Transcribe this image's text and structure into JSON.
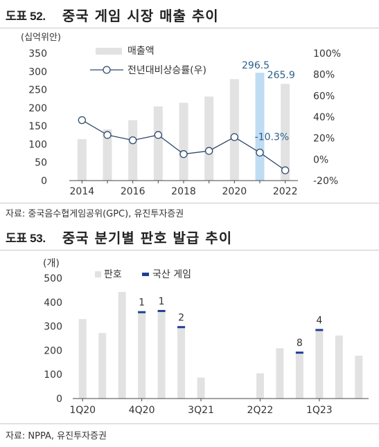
{
  "fig52": {
    "number": "도표 52.",
    "title": "중국 게임 시장 매출 추이",
    "source": "자료: 중국음수협게임공위(GPC), 유진투자증권"
  },
  "fig53": {
    "number": "도표 53.",
    "title": "중국 분기별 판호 발급 추이",
    "source": "자료: NPPA, 유진투자증권"
  },
  "chart_data": [
    {
      "type": "bar",
      "unit_label": "(십억위안)",
      "x": [
        2014,
        2015,
        2016,
        2017,
        2018,
        2019,
        2020,
        2021,
        2022
      ],
      "x_tick_labels": [
        "2014",
        "2016",
        "2018",
        "2020",
        "2022"
      ],
      "ylim": [
        0,
        350
      ],
      "y_ticks": [
        0,
        50,
        100,
        150,
        200,
        250,
        300,
        350
      ],
      "y2lim": [
        -20,
        100
      ],
      "y2_ticks": [
        "-20%",
        "0%",
        "20%",
        "40%",
        "60%",
        "80%",
        "100%"
      ],
      "y2_tick_values": [
        -20,
        0,
        20,
        40,
        60,
        80,
        100
      ],
      "legend_position": "top-left",
      "series": [
        {
          "name": "매출액",
          "type": "bar",
          "axis": "left",
          "values": [
            114,
            141,
            166,
            204,
            214,
            231,
            279,
            296.5,
            265.9
          ],
          "color": "#e2e2e2",
          "highlight_color": "#bfdcf3",
          "highlight_index": [
            7
          ]
        },
        {
          "name": "전년대비상승률(우)",
          "type": "line",
          "axis": "right",
          "values": [
            37,
            23,
            18,
            23,
            5,
            8,
            21,
            6.4,
            -10.3
          ],
          "color": "#2e4a6b"
        }
      ],
      "annotations": [
        {
          "text": "296.5",
          "index": 7
        },
        {
          "text": "265.9",
          "index": 8
        },
        {
          "text": "-10.3%",
          "index": 8
        }
      ]
    },
    {
      "type": "bar",
      "unit_label": "(개)",
      "x_tick_labels": [
        "1Q20",
        "4Q20",
        "3Q21",
        "2Q22",
        "1Q23"
      ],
      "x_tick_index": [
        0,
        3,
        6,
        9,
        12
      ],
      "ylim": [
        0,
        500
      ],
      "y_ticks": [
        0,
        100,
        200,
        300,
        400,
        500
      ],
      "legend_position": "top",
      "series": [
        {
          "name": "판호",
          "values": [
            330,
            272,
            443,
            363,
            368,
            301,
            87,
            0,
            0,
            105,
            209,
            195,
            289,
            262,
            178
          ],
          "color": "#e2e2e2"
        },
        {
          "name": "국산 게임",
          "values": [
            0,
            0,
            0,
            1,
            1,
            2,
            0,
            0,
            0,
            0,
            0,
            8,
            4,
            0,
            0
          ],
          "color": "#1f3f94"
        }
      ],
      "annotations": [
        {
          "text": "1",
          "index": 3
        },
        {
          "text": "1",
          "index": 4
        },
        {
          "text": "2",
          "index": 5
        },
        {
          "text": "8",
          "index": 11
        },
        {
          "text": "4",
          "index": 12
        }
      ]
    }
  ]
}
